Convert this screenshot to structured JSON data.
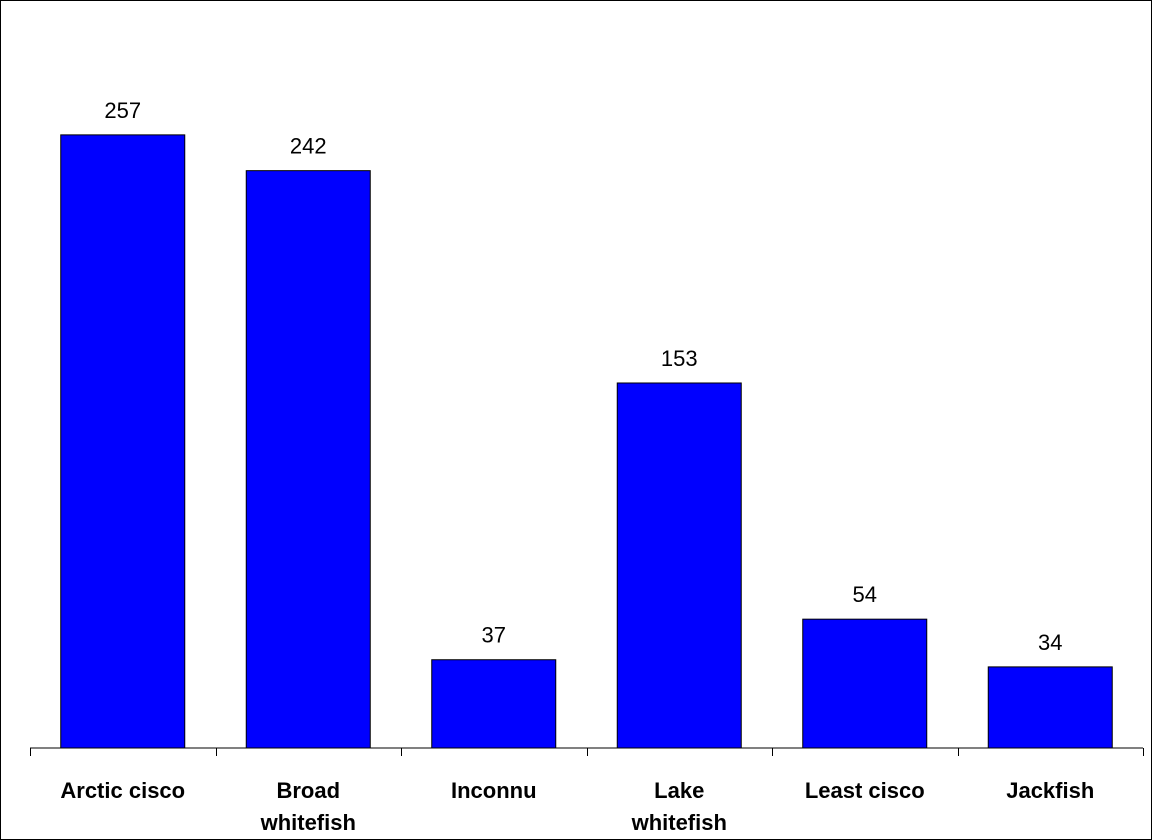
{
  "chart_data": {
    "type": "bar",
    "title": "",
    "xlabel": "",
    "ylabel": "",
    "categories": [
      [
        "Arctic cisco"
      ],
      [
        "Broad",
        "whitefish"
      ],
      [
        "Inconnu"
      ],
      [
        "Lake",
        "whitefish"
      ],
      [
        "Least cisco"
      ],
      [
        "Jackfish"
      ]
    ],
    "values": [
      257,
      242,
      37,
      153,
      54,
      34
    ],
    "ylim": [
      0,
      280
    ],
    "grid": false,
    "legend": "none",
    "bar_color": "#0000FF",
    "bar_outline": "#000000",
    "data_labels": true
  }
}
